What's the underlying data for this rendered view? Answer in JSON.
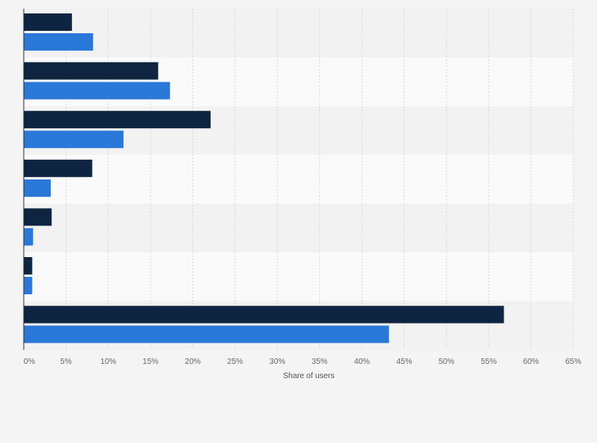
{
  "chart_data": {
    "type": "bar",
    "orientation": "horizontal",
    "xlabel": "Share of users",
    "x_ticks": [
      "0%",
      "5%",
      "10%",
      "15%",
      "20%",
      "25%",
      "30%",
      "35%",
      "40%",
      "45%",
      "50%",
      "55%",
      "60%",
      "65%"
    ],
    "xlim": [
      0,
      65
    ],
    "grid": true,
    "categories": [
      "",
      "",
      "",
      "",
      "",
      "",
      ""
    ],
    "series": [
      {
        "color": "#0e2440",
        "values": [
          5.7,
          15.9,
          22.1,
          8.1,
          3.3,
          1.0,
          56.8
        ]
      },
      {
        "color": "#2a78d8",
        "values": [
          8.2,
          17.3,
          11.8,
          3.2,
          1.1,
          1.0,
          43.2
        ]
      }
    ]
  }
}
